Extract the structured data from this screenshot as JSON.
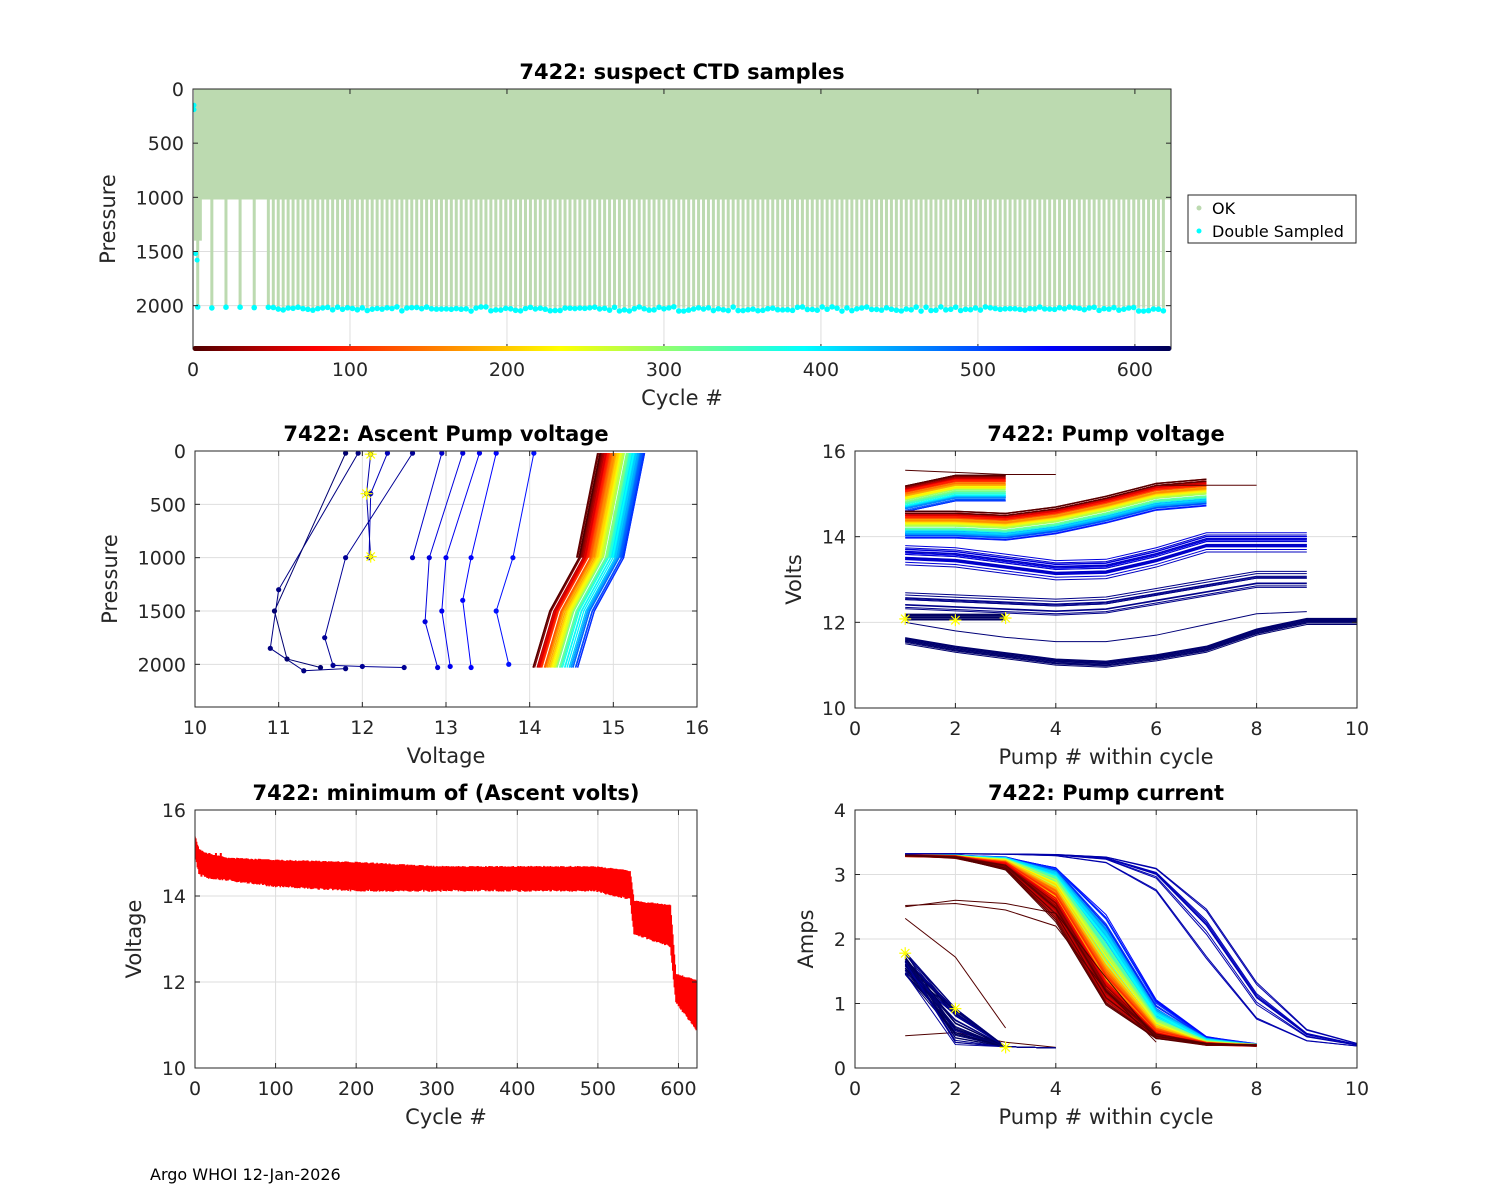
{
  "float_id": "7422",
  "footer": "Argo WHOI 12-Jan-2026",
  "colormap": {
    "name": "jet-reversed-dark",
    "stops": [
      "#4d0000",
      "#ff0000",
      "#ff8000",
      "#ffff00",
      "#80ff80",
      "#00ffff",
      "#0080ff",
      "#0000ff",
      "#000050"
    ],
    "range": [
      0,
      623
    ]
  },
  "chart_data": [
    {
      "id": "suspect-ctd",
      "type": "scatter",
      "title": "7422: suspect CTD samples",
      "xlabel": "Cycle #",
      "ylabel": "Pressure",
      "xlim": [
        0,
        623
      ],
      "ylim": [
        2400,
        0
      ],
      "y_reversed": true,
      "xticks": [
        0,
        100,
        200,
        300,
        400,
        500,
        600
      ],
      "yticks": [
        0,
        500,
        1000,
        1500,
        2000
      ],
      "grid": true,
      "legend": {
        "placement": "outside-right",
        "entries": [
          {
            "label": "OK",
            "color": "#bcdab0"
          },
          {
            "label": "Double Sampled",
            "color": "#00ffff"
          }
        ]
      },
      "series": [
        {
          "name": "OK",
          "color": "#bcdab0",
          "description": "profile samples 0 to ~1000 dbar every cycle; to ~2000 dbar every ~3rd cycle"
        },
        {
          "name": "Double Sampled",
          "color": "#00ffff",
          "deep_pressure": 2020
        }
      ],
      "colorbar": {
        "xlim": [
          0,
          623
        ]
      }
    },
    {
      "id": "ascent-pump-voltage",
      "type": "line",
      "title": "7422: Ascent Pump voltage",
      "xlabel": "Voltage",
      "ylabel": "Pressure",
      "xlim": [
        10,
        16
      ],
      "ylim": [
        2400,
        0
      ],
      "y_reversed": true,
      "xticks": [
        10,
        11,
        12,
        13,
        14,
        15,
        16
      ],
      "yticks": [
        0,
        500,
        1000,
        1500,
        2000
      ],
      "grid": true,
      "marked_points": [
        {
          "x": 12.1,
          "y": 30
        },
        {
          "x": 12.05,
          "y": 400
        },
        {
          "x": 12.1,
          "y": 990
        }
      ],
      "representative_profiles": [
        {
          "cycle": 10,
          "points": [
            [
              15.3,
              20
            ],
            [
              15.1,
              1000
            ]
          ]
        },
        {
          "cycle": 200,
          "points": [
            [
              15.2,
              20
            ],
            [
              15.0,
              1000
            ]
          ]
        },
        {
          "cycle": 400,
          "points": [
            [
              15.05,
              20
            ],
            [
              14.8,
              1000
            ]
          ]
        },
        {
          "cycle": 520,
          "points": [
            [
              14.3,
              20
            ],
            [
              13.9,
              1000
            ]
          ]
        },
        {
          "cycle": 560,
          "points": [
            [
              13.6,
              20
            ],
            [
              13.3,
              1000
            ]
          ]
        },
        {
          "cycle": 600,
          "points": [
            [
              12.7,
              20
            ],
            [
              11.1,
              1700
            ],
            [
              11.4,
              2060
            ]
          ]
        },
        {
          "cycle": 620,
          "points": [
            [
              12.1,
              30
            ],
            [
              12.05,
              400
            ],
            [
              12.1,
              990
            ]
          ]
        }
      ]
    },
    {
      "id": "pump-voltage",
      "type": "line",
      "title": "7422: Pump voltage",
      "xlabel": "Pump # within cycle",
      "ylabel": "Volts",
      "xlim": [
        0,
        10
      ],
      "ylim": [
        10,
        16
      ],
      "xticks": [
        0,
        2,
        4,
        6,
        8,
        10
      ],
      "yticks": [
        10,
        12,
        14,
        16
      ],
      "grid": true,
      "marked_points": [
        {
          "x": 1,
          "y": 12.08
        },
        {
          "x": 2,
          "y": 12.05
        },
        {
          "x": 3,
          "y": 12.1
        }
      ],
      "representative_curves": [
        {
          "cycle": 5,
          "points": [
            [
              1,
              15.55
            ],
            [
              2,
              15.5
            ],
            [
              3,
              15.45
            ],
            [
              4,
              15.45
            ]
          ]
        },
        {
          "cycle": 100,
          "points": [
            [
              1,
              14.9
            ],
            [
              2,
              15.2
            ],
            [
              3,
              15.2
            ]
          ]
        },
        {
          "cycle": 300,
          "points": [
            [
              1,
              14.3
            ],
            [
              2,
              14.3
            ],
            [
              3,
              14.2
            ],
            [
              4,
              14.4
            ],
            [
              5,
              14.6
            ],
            [
              6,
              14.9
            ],
            [
              7,
              15.0
            ]
          ]
        },
        {
          "cycle": 500,
          "points": [
            [
              1,
              13.9
            ],
            [
              2,
              13.9
            ],
            [
              3,
              13.9
            ],
            [
              4,
              14.0
            ],
            [
              6,
              14.6
            ],
            [
              7,
              14.9
            ]
          ]
        },
        {
          "cycle": 560,
          "points": [
            [
              1,
              13.3
            ],
            [
              3,
              13.1
            ],
            [
              4,
              13.0
            ],
            [
              5,
              13.0
            ],
            [
              6,
              13.3
            ],
            [
              7,
              13.7
            ],
            [
              9,
              13.7
            ]
          ]
        },
        {
          "cycle": 600,
          "points": [
            [
              1,
              11.6
            ],
            [
              3,
              11.2
            ],
            [
              4,
              11.0
            ],
            [
              5,
              10.9
            ],
            [
              6,
              11.1
            ],
            [
              7,
              11.3
            ],
            [
              8,
              11.8
            ],
            [
              9,
              12.0
            ],
            [
              10,
              12.0
            ]
          ]
        },
        {
          "cycle": 620,
          "points": [
            [
              1,
              12.08
            ],
            [
              2,
              12.05
            ],
            [
              3,
              12.1
            ]
          ]
        }
      ]
    },
    {
      "id": "min-ascent-volts",
      "type": "line",
      "title": "7422: minimum of (Ascent volts)",
      "xlabel": "Cycle #",
      "ylabel": "Voltage",
      "xlim": [
        0,
        623
      ],
      "ylim": [
        10,
        16
      ],
      "xticks": [
        0,
        100,
        200,
        300,
        400,
        500,
        600
      ],
      "yticks": [
        10,
        12,
        14,
        16
      ],
      "grid": true,
      "color": "#ff0000",
      "envelope": {
        "x": [
          0,
          5,
          15,
          40,
          100,
          200,
          300,
          400,
          495,
          540,
          545,
          590,
          597,
          623
        ],
        "upper": [
          15.4,
          15.1,
          15.0,
          14.9,
          14.85,
          14.8,
          14.7,
          14.7,
          14.7,
          14.6,
          13.9,
          13.8,
          12.2,
          12.05
        ],
        "lower": [
          14.9,
          14.5,
          14.4,
          14.35,
          14.2,
          14.1,
          14.1,
          14.1,
          14.1,
          13.9,
          13.1,
          12.8,
          11.5,
          10.85
        ]
      }
    },
    {
      "id": "pump-current",
      "type": "line",
      "title": "7422: Pump current",
      "xlabel": "Pump # within cycle",
      "ylabel": "Amps",
      "xlim": [
        0,
        10
      ],
      "ylim": [
        0,
        4
      ],
      "xticks": [
        0,
        2,
        4,
        6,
        8,
        10
      ],
      "yticks": [
        0,
        1,
        2,
        3,
        4
      ],
      "grid": true,
      "marked_points": [
        {
          "x": 1,
          "y": 1.78
        },
        {
          "x": 2,
          "y": 0.92
        },
        {
          "x": 3,
          "y": 0.32
        }
      ],
      "representative_curves": [
        {
          "cycle": 5,
          "points": [
            [
              1,
              2.5
            ],
            [
              2,
              2.6
            ],
            [
              3,
              2.5
            ],
            [
              4,
              2.3
            ],
            [
              5,
              1.3
            ],
            [
              6,
              0.4
            ]
          ]
        },
        {
          "cycle": 100,
          "points": [
            [
              1,
              3.25
            ],
            [
              2,
              3.3
            ],
            [
              3,
              3.1
            ],
            [
              4,
              2.3
            ],
            [
              5,
              1.4
            ],
            [
              6,
              0.45
            ],
            [
              7,
              0.35
            ]
          ]
        },
        {
          "cycle": 400,
          "points": [
            [
              1,
              3.3
            ],
            [
              2,
              3.3
            ],
            [
              3,
              3.2
            ],
            [
              4,
              2.9
            ],
            [
              5,
              1.9
            ],
            [
              6,
              0.9
            ],
            [
              7,
              0.4
            ],
            [
              8,
              0.32
            ]
          ]
        },
        {
          "cycle": 580,
          "points": [
            [
              1,
              3.35
            ],
            [
              2,
              3.4
            ],
            [
              3,
              3.3
            ],
            [
              4,
              3.2
            ],
            [
              5,
              3.1
            ],
            [
              6,
              2.4
            ],
            [
              7,
              1.9
            ],
            [
              8,
              1.1
            ],
            [
              9,
              0.35
            ],
            [
              10,
              0.3
            ]
          ]
        },
        {
          "cycle": 615,
          "points": [
            [
              1,
              1.6
            ],
            [
              2,
              0.55
            ],
            [
              3,
              0.33
            ],
            [
              4,
              0.31
            ]
          ]
        },
        {
          "cycle": 620,
          "points": [
            [
              1,
              1.78
            ],
            [
              2,
              0.92
            ],
            [
              3,
              0.32
            ]
          ]
        }
      ]
    }
  ]
}
